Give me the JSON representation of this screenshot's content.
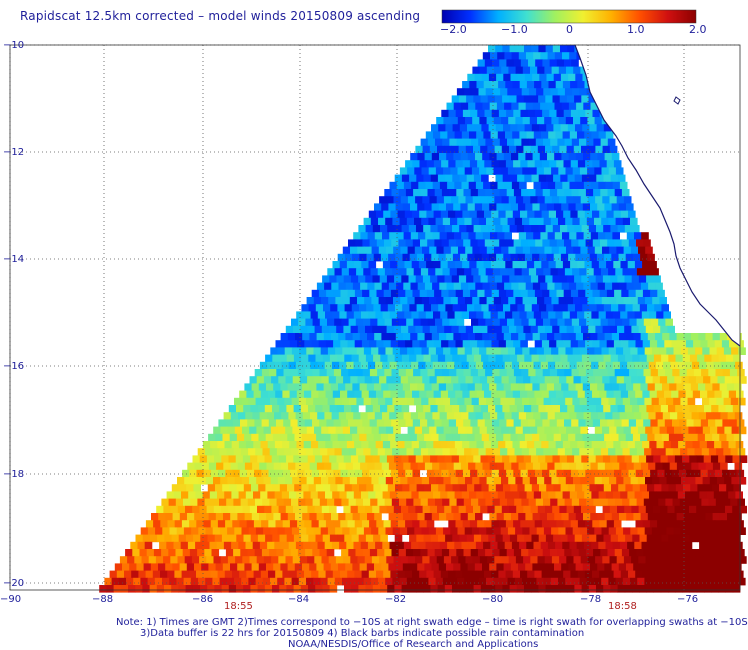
{
  "title": "Rapidscat 12.5km corrected – model winds 20150809 ascending",
  "colorbar": {
    "min": -2.0,
    "max": 2.0,
    "labels": [
      "−2.0",
      "−1.0",
      "0",
      "1.0",
      "2.0"
    ],
    "stops": [
      "#0000b0",
      "#0030ff",
      "#00b0ff",
      "#40e0d0",
      "#a0f060",
      "#f0f030",
      "#ffb000",
      "#ff5000",
      "#d01010",
      "#8c0000"
    ]
  },
  "axes": {
    "x_ticks": [
      "−90",
      "−88",
      "−86",
      "−84",
      "−82",
      "−80",
      "−78",
      "−76"
    ],
    "y_ticks": [
      "−10",
      "−12",
      "−14",
      "−16",
      "−18",
      "−20"
    ]
  },
  "times": [
    "18:55",
    "18:58"
  ],
  "notes": [
    "Note: 1) Times are GMT 2)Times correspond to −10S at right swath edge – time is right swath for overlapping swaths at −10S",
    "3)Data buffer is 22 hrs for 20150809 4) Black barbs indicate possible rain contamination",
    "NOAA/NESDIS/Office of Research and Applications"
  ],
  "colors": {
    "coastline": "#1a1a6e",
    "grid": "#555555",
    "label": "#1f1f9a",
    "time": "#b02020"
  }
}
